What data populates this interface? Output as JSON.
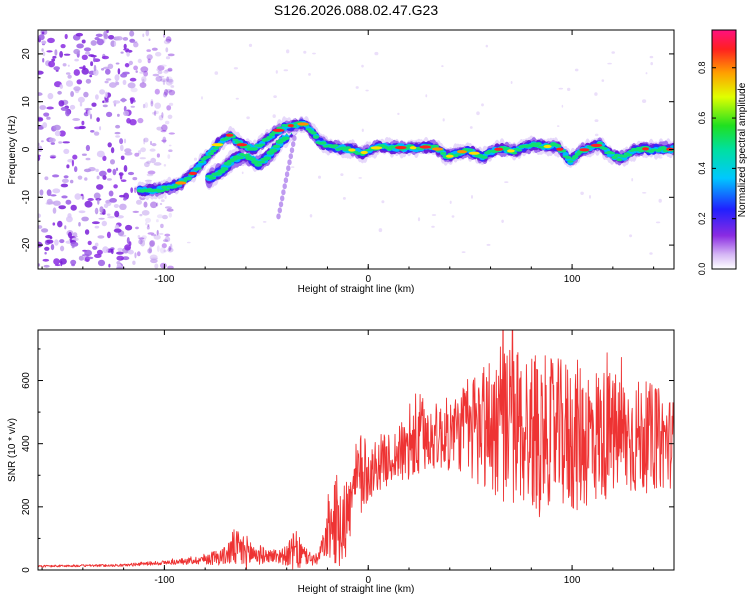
{
  "title": "S126.2026.088.02.47.G23",
  "chart_data": [
    {
      "type": "heatmap",
      "name": "spectrogram",
      "xlabel": "Height of straight line (km)",
      "ylabel": "Frequency (Hz)",
      "xlim": [
        -162,
        150
      ],
      "ylim": [
        -25,
        25
      ],
      "x_ticks": [
        -100,
        0,
        100
      ],
      "y_ticks": [
        -20,
        -10,
        0,
        10,
        20
      ],
      "colorbar": {
        "label": "Normalized spectral amplitude",
        "range": [
          0,
          0.95
        ],
        "ticks": [
          0.0,
          0.2,
          0.4,
          0.6,
          0.8
        ]
      },
      "ridge": {
        "x": [
          -112,
          -104,
          -98,
          -92,
          -86,
          -80,
          -74,
          -68,
          -62,
          -56,
          -50,
          -44,
          -40,
          -36,
          -33,
          -30,
          -27,
          -24,
          -21,
          -18,
          -15,
          -12,
          -9,
          -6,
          -3,
          0,
          3,
          6,
          9,
          12,
          15,
          18,
          21,
          24,
          27,
          30,
          33,
          36,
          39,
          42,
          45,
          48,
          51,
          54,
          57,
          60,
          63,
          66,
          69,
          72,
          75,
          78,
          81,
          84,
          87,
          90,
          93,
          96,
          99,
          102,
          105,
          108,
          111,
          114,
          117,
          120,
          123,
          126,
          129,
          132,
          135,
          138,
          141,
          144,
          147,
          150
        ],
        "y": [
          -8.5,
          -8.5,
          -8.0,
          -7.0,
          -5.0,
          -2.0,
          1.0,
          3.0,
          1.0,
          0.0,
          2.0,
          4.0,
          5.0,
          5.0,
          5.5,
          5.0,
          3.5,
          1.5,
          0.8,
          0.6,
          0.4,
          0.2,
          0.0,
          -0.3,
          -0.8,
          -0.3,
          0.2,
          0.6,
          0.6,
          0.2,
          0.5,
          0.2,
          0.4,
          0.3,
          0.5,
          0.6,
          0.4,
          -0.5,
          -1.5,
          -1.2,
          -0.6,
          -0.2,
          -0.5,
          -1.3,
          -1.5,
          -0.6,
          0.0,
          0.2,
          -0.2,
          -0.5,
          0.2,
          0.6,
          1.0,
          0.8,
          0.5,
          0.9,
          0.5,
          -0.8,
          -2.5,
          -1.2,
          -0.2,
          0.2,
          0.8,
          1.0,
          -0.5,
          -1.2,
          -1.8,
          -1.5,
          -0.5,
          0.0,
          0.2,
          0.0,
          0.1,
          0.2,
          0.0,
          0.2
        ]
      },
      "branch": {
        "x": [
          -78,
          -72,
          -66,
          -60,
          -54,
          -48,
          -44,
          -40,
          -36
        ],
        "y": [
          -6.0,
          -4.5,
          -2.0,
          -1.0,
          -3.0,
          -1.0,
          1.0,
          3.0,
          4.5
        ]
      },
      "noise_region_x": [
        -162,
        -108
      ]
    },
    {
      "type": "line",
      "name": "snr",
      "xlabel": "Height of straight line (km)",
      "ylabel": "SNR (10 * v/v)",
      "xlim": [
        -162,
        150
      ],
      "ylim": [
        0,
        760
      ],
      "x_ticks": [
        -100,
        0,
        100
      ],
      "y_ticks": [
        0,
        200,
        400,
        600
      ],
      "color": "#ee3333",
      "envelope": {
        "x": [
          -162,
          -120,
          -110,
          -95,
          -85,
          -80,
          -70,
          -66,
          -62,
          -55,
          -50,
          -40,
          -36,
          -30,
          -25,
          -22,
          -18,
          -15,
          -12,
          -10,
          -6,
          -3,
          0,
          5,
          10,
          15,
          20,
          24,
          30,
          40,
          45,
          50,
          60,
          70,
          80,
          90,
          100,
          110,
          120,
          130,
          140,
          150
        ],
        "base": [
          12,
          15,
          20,
          25,
          30,
          35,
          45,
          70,
          60,
          50,
          45,
          45,
          60,
          40,
          30,
          80,
          140,
          160,
          180,
          170,
          280,
          300,
          300,
          340,
          350,
          370,
          380,
          420,
          420,
          430,
          440,
          450,
          460,
          460,
          440,
          440,
          420,
          430,
          430,
          420,
          420,
          400
        ],
        "amp": [
          3,
          4,
          6,
          8,
          12,
          18,
          30,
          60,
          60,
          40,
          20,
          30,
          70,
          25,
          20,
          40,
          120,
          150,
          200,
          100,
          120,
          150,
          80,
          90,
          80,
          90,
          110,
          160,
          100,
          120,
          130,
          180,
          230,
          260,
          260,
          230,
          250,
          230,
          200,
          190,
          170,
          140
        ]
      }
    }
  ]
}
